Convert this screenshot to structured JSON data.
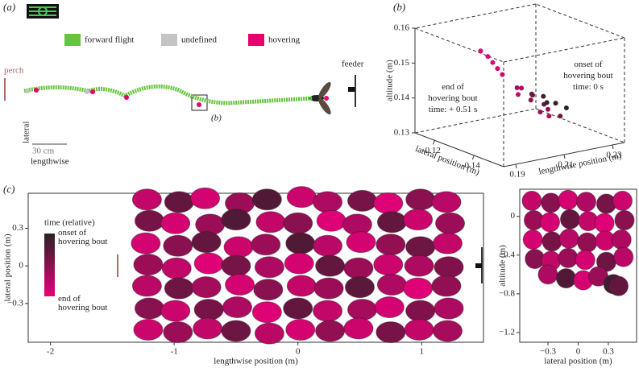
{
  "panel_a": {
    "label": "(a)",
    "legend": [
      {
        "name": "forward flight",
        "color": "#66c43d"
      },
      {
        "name": "undefined",
        "color": "#c4c4c4"
      },
      {
        "name": "hovering",
        "color": "#e8006e"
      }
    ],
    "perch": "perch",
    "feeder": "feeder",
    "inset_label": "(b)",
    "scale_bar": "30 cm",
    "axis_lateral": "lateral",
    "axis_lengthwise": "lengthwise"
  },
  "chart_data": [
    {
      "type": "scatter3d",
      "label": "(b)",
      "zlabel": "altitude (m)",
      "xlabel": "lateral position (m)",
      "ylabel": "lengthwise position (m)",
      "xlim": [
        -0.11,
        -0.155
      ],
      "xticks": [
        -0.12,
        -0.14
      ],
      "ylim": [
        0.185,
        0.235
      ],
      "yticks": [
        0.19,
        0.21,
        0.23
      ],
      "zlim": [
        0.13,
        0.16
      ],
      "zticks": [
        0.16,
        0.15,
        0.14,
        0.13
      ],
      "annotations": [
        {
          "lines": [
            "end of",
            "hovering bout",
            "time: + 0.51 s"
          ]
        },
        {
          "lines": [
            "onset of",
            "hovering bout",
            "time: 0 s"
          ]
        }
      ],
      "lateral": [
        -0.12,
        -0.12,
        -0.12,
        -0.12,
        -0.12,
        -0.128,
        -0.132,
        -0.126,
        -0.135,
        -0.138,
        -0.13,
        -0.128,
        -0.134,
        -0.14,
        -0.131,
        -0.137,
        -0.125,
        -0.136,
        -0.142,
        -0.139
      ],
      "lengthwise": [
        0.204,
        0.207,
        0.209,
        0.211,
        0.213,
        0.213,
        0.215,
        0.216,
        0.218,
        0.214,
        0.217,
        0.219,
        0.22,
        0.216,
        0.221,
        0.218,
        0.215,
        0.222,
        0.219,
        0.224
      ],
      "altitude": [
        0.153,
        0.151,
        0.149,
        0.147,
        0.145,
        0.141,
        0.14,
        0.142,
        0.139,
        0.138,
        0.141,
        0.14,
        0.139,
        0.137,
        0.14,
        0.138,
        0.142,
        0.139,
        0.137,
        0.138
      ],
      "t": [
        1,
        0.97,
        0.94,
        0.9,
        0.86,
        0.8,
        0.5,
        0.7,
        0.3,
        0.6,
        0.2,
        0.4,
        0.1,
        0.75,
        0.15,
        0.55,
        0.65,
        0.05,
        0.35,
        0
      ]
    },
    {
      "type": "scatter",
      "label": "(c)",
      "xlabel": "lengthwise position (m)",
      "ylabel": "lateral position (m)",
      "xlim": [
        -2.18,
        1.5
      ],
      "xticks": [
        -2,
        -1,
        0,
        1
      ],
      "ylim": [
        -0.61,
        0.58
      ],
      "yticks": [
        {
          "value": 0.3,
          "label": "0.3"
        },
        0,
        {
          "value": -0.3,
          "label": "−0.3"
        }
      ],
      "colorbar": {
        "title": "time (relative)",
        "top_lines": [
          "onset of",
          "hovering bout"
        ],
        "bottom_lines": [
          "end of",
          "hovering bout"
        ],
        "colors": [
          "#2a2125",
          "#e8007a"
        ]
      },
      "x": [
        -1.22,
        -0.96,
        -0.75,
        -0.47,
        -0.25,
        0.03,
        0.24,
        0.52,
        0.73,
        0.99,
        1.2,
        -1.2,
        -0.99,
        -0.71,
        -0.5,
        -0.22,
        0,
        0.27,
        0.48,
        0.76,
        0.97,
        1.23,
        -1.23,
        -0.97,
        -0.74,
        -0.48,
        -0.26,
        0.02,
        0.24,
        0.51,
        0.75,
        0.99,
        1.21,
        -1.21,
        -0.98,
        -0.72,
        -0.5,
        -0.23,
        0.01,
        0.26,
        0.49,
        0.73,
        0.98,
        1.22,
        -1.22,
        -0.96,
        -0.74,
        -0.47,
        -0.24,
        0.03,
        0.25,
        0.5,
        0.76,
        0.97,
        1.2,
        -1.2,
        -0.99,
        -0.72,
        -0.49,
        -0.25,
        0,
        0.24,
        0.52,
        0.74,
        0.99,
        1.22,
        -1.21,
        -0.97,
        -0.73,
        -0.5,
        -0.23,
        0.02,
        0.26,
        0.49,
        0.75,
        0.98,
        1.21
      ],
      "y": [
        0.53,
        0.51,
        0.54,
        0.5,
        0.53,
        0.55,
        0.51,
        0.52,
        0.5,
        0.53,
        0.51,
        0.36,
        0.34,
        0.33,
        0.37,
        0.35,
        0.34,
        0.36,
        0.33,
        0.35,
        0.37,
        0.34,
        0.18,
        0.16,
        0.19,
        0.15,
        0.17,
        0.18,
        0.16,
        0.19,
        0.17,
        0.15,
        0.18,
        0.01,
        -0.02,
        0.02,
        0,
        -0.01,
        0.02,
        0,
        -0.02,
        0.01,
        0,
        -0.01,
        -0.16,
        -0.18,
        -0.17,
        -0.15,
        -0.19,
        -0.16,
        -0.18,
        -0.17,
        -0.15,
        -0.18,
        -0.16,
        -0.34,
        -0.36,
        -0.35,
        -0.33,
        -0.37,
        -0.34,
        -0.36,
        -0.35,
        -0.33,
        -0.36,
        -0.34,
        -0.51,
        -0.53,
        -0.5,
        -0.52,
        -0.54,
        -0.51,
        -0.52,
        -0.5,
        -0.53,
        -0.51,
        -0.52
      ],
      "t": [
        0.8,
        0.3,
        0.9,
        0.6,
        0.2,
        0.85,
        0.7,
        0.4,
        0.95,
        0.5,
        0.75,
        0.4,
        0.9,
        0.6,
        0.2,
        0.8,
        0.5,
        0.95,
        0.7,
        0.3,
        0.85,
        0.6,
        0.9,
        0.5,
        0.3,
        0.85,
        0.6,
        0.2,
        0.75,
        0.9,
        0.55,
        0.35,
        0.8,
        0.6,
        0.8,
        0.95,
        0.4,
        0.7,
        0.9,
        0.3,
        0.6,
        0.85,
        0.7,
        0.45,
        0.75,
        0.35,
        0.65,
        0.9,
        0.5,
        0.8,
        0.6,
        0.25,
        0.7,
        0.95,
        0.55,
        0.5,
        0.85,
        0.4,
        0.7,
        0.95,
        0.3,
        0.8,
        0.65,
        0.9,
        0.45,
        0.7,
        0.85,
        0.6,
        0.8,
        0.35,
        0.75,
        0.9,
        0.55,
        0.85,
        0.4,
        0.8,
        0.65
      ]
    },
    {
      "type": "scatter",
      "xlabel": "lateral position (m)",
      "ylabel": "altitude (m)",
      "xlim": [
        -0.58,
        0.58
      ],
      "xticks": [
        {
          "value": -0.3,
          "label": "−0.3"
        },
        0,
        0.3
      ],
      "ylim": [
        -1.3,
        0.28
      ],
      "yticks": [
        0,
        {
          "value": -0.4,
          "label": "−0.4"
        },
        {
          "value": -0.8,
          "label": "−0.8"
        },
        {
          "value": -1.2,
          "label": "−1.2"
        }
      ],
      "x": [
        -0.46,
        -0.27,
        -0.1,
        0.08,
        0.28,
        0.44,
        -0.44,
        -0.28,
        -0.08,
        0.1,
        0.26,
        0.46,
        -0.45,
        -0.26,
        -0.09,
        0.09,
        0.27,
        0.43,
        -0.43,
        -0.27,
        -0.1,
        0.07,
        0.28,
        0.45,
        -0.3,
        -0.12,
        0.05,
        0.2,
        0.35,
        0.4
      ],
      "y": [
        0.16,
        0.14,
        0.17,
        0.15,
        0.13,
        0.16,
        -0.04,
        -0.06,
        -0.03,
        -0.05,
        -0.07,
        -0.04,
        -0.24,
        -0.26,
        -0.23,
        -0.27,
        -0.25,
        -0.24,
        -0.44,
        -0.46,
        -0.43,
        -0.45,
        -0.47,
        -0.42,
        -0.6,
        -0.64,
        -0.66,
        -0.62,
        -0.7,
        -0.72
      ],
      "t": [
        0.8,
        0.5,
        0.9,
        0.7,
        0.4,
        0.85,
        0.6,
        0.9,
        0.3,
        0.8,
        0.95,
        0.5,
        0.9,
        0.4,
        0.75,
        0.55,
        0.85,
        0.7,
        0.5,
        0.8,
        0.6,
        0.9,
        0.35,
        0.75,
        0.7,
        0.2,
        0.9,
        0.6,
        0.1,
        0.3
      ]
    }
  ]
}
